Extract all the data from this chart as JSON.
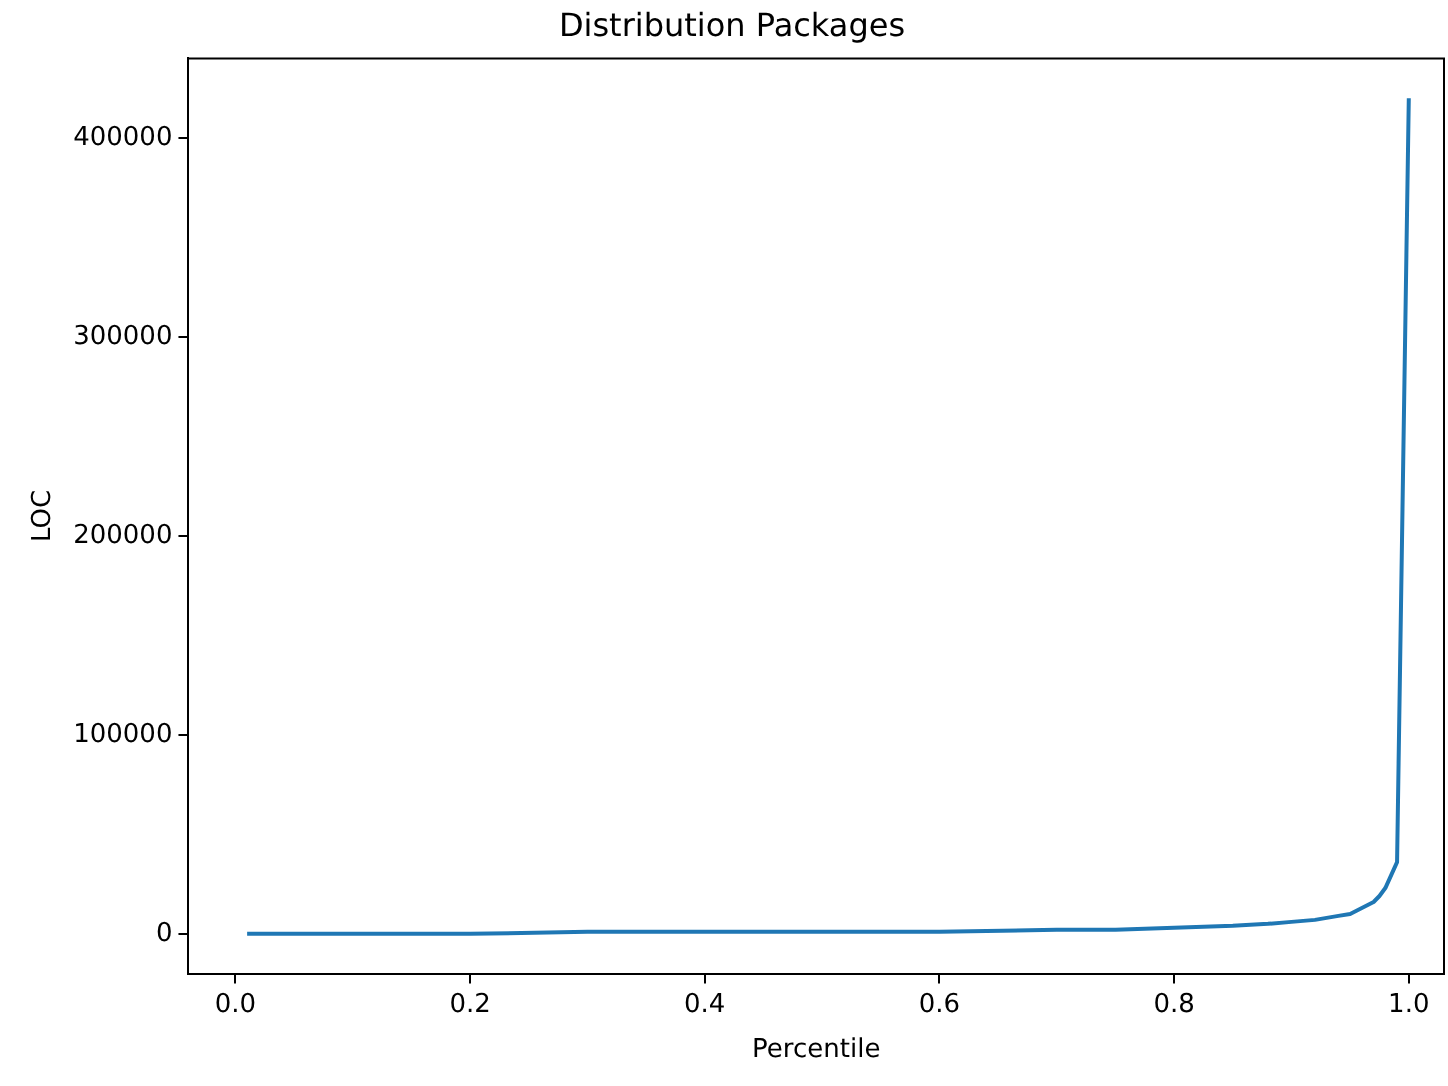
{
  "chart_data": {
    "type": "line",
    "title": "Distribution Packages",
    "xlabel": "Percentile",
    "ylabel": "LOC",
    "x": [
      0.01,
      0.1,
      0.2,
      0.3,
      0.4,
      0.5,
      0.6,
      0.7,
      0.75,
      0.8,
      0.85,
      0.88,
      0.9,
      0.92,
      0.94,
      0.95,
      0.96,
      0.97,
      0.975,
      0.98,
      0.99,
      1.0
    ],
    "series": [
      {
        "color": "#1f77b4",
        "values": [
          0,
          0,
          0,
          1000,
          1000,
          1000,
          1000,
          2000,
          2000,
          3000,
          4000,
          5000,
          6000,
          7000,
          9000,
          10000,
          13000,
          16000,
          19000,
          23000,
          36000,
          420000
        ]
      }
    ],
    "xlim": [
      -0.04,
      1.03
    ],
    "xticks": [
      {
        "value": 0,
        "label": "0.0"
      },
      {
        "value": 0.2,
        "label": "0.2"
      },
      {
        "value": 0.4,
        "label": "0.4"
      },
      {
        "value": 0.6,
        "label": "0.6"
      },
      {
        "value": 0.8,
        "label": "0.8"
      },
      {
        "value": 1,
        "label": "1.0"
      }
    ],
    "ylim": [
      -20000,
      440000
    ],
    "yticks": [
      0,
      100000,
      200000,
      300000,
      400000
    ],
    "grid": false,
    "legend": false,
    "marker": "none",
    "line_style": "solid"
  }
}
